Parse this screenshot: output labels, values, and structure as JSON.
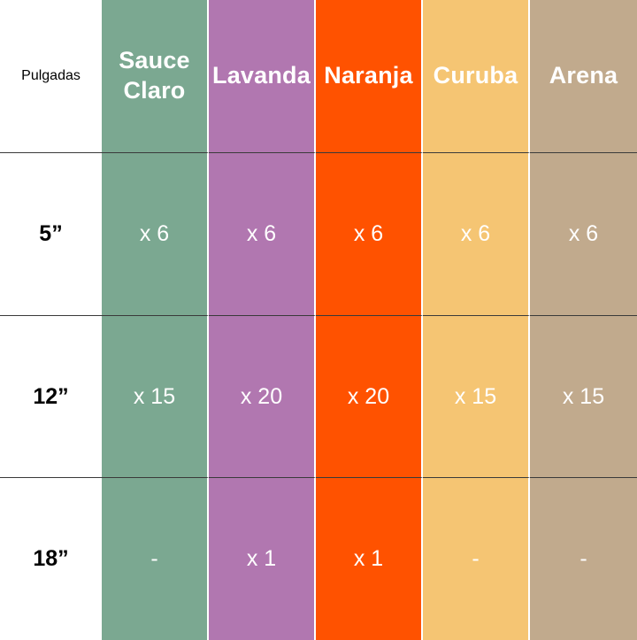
{
  "table": {
    "corner_label": "Pulgadas",
    "columns": [
      {
        "label": "Sauce\nClaro",
        "color": "#7ba891"
      },
      {
        "label": "Lavanda",
        "color": "#b177b0"
      },
      {
        "label": "Naranja",
        "color": "#ff5200"
      },
      {
        "label": "Curuba",
        "color": "#f5c573"
      },
      {
        "label": "Arena",
        "color": "#c1aa8d"
      }
    ],
    "rows": [
      {
        "size": "5”",
        "values": [
          "x 6",
          "x 6",
          "x 6",
          "x 6",
          "x 6"
        ]
      },
      {
        "size": "12”",
        "values": [
          "x 15",
          "x 20",
          "x 20",
          "x 15",
          "x 15"
        ]
      },
      {
        "size": "18”",
        "values": [
          "-",
          "x 1",
          "x 1",
          "-",
          "-"
        ]
      }
    ]
  }
}
